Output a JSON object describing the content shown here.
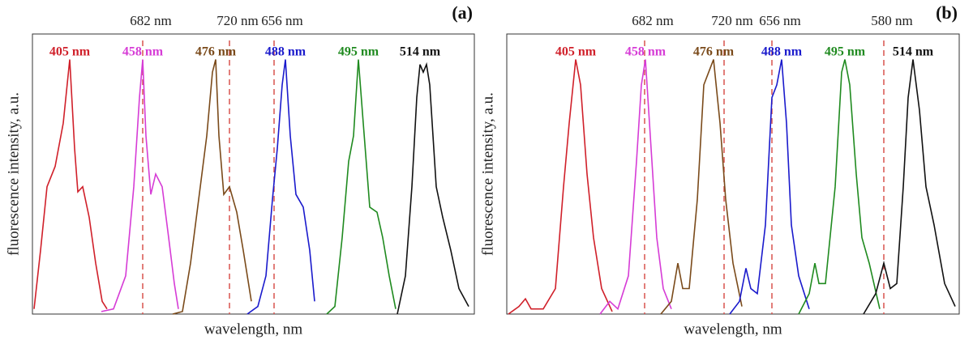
{
  "chart_data": [
    {
      "type": "line",
      "title": "(a)",
      "xlabel": "wavelength, nm",
      "ylabel": "fluorescence intensity, a.u.",
      "xlim": [
        0,
        545
      ],
      "ylim": [
        0,
        1.1
      ],
      "reference_lines": [
        {
          "label": "682 nm",
          "x": 136,
          "color": "#d9534f"
        },
        {
          "label": "720 nm",
          "x": 243,
          "color": "#d9534f"
        },
        {
          "label": "656 nm",
          "x": 298,
          "color": "#d9534f"
        }
      ],
      "series": [
        {
          "name": "405 nm",
          "color": "#d0202a",
          "x": [
            2,
            10,
            18,
            28,
            38,
            46,
            52,
            56,
            62,
            70,
            78,
            86,
            92
          ],
          "values": [
            0.02,
            0.25,
            0.5,
            0.58,
            0.75,
            1.0,
            0.65,
            0.48,
            0.5,
            0.38,
            0.2,
            0.05,
            0.02
          ]
        },
        {
          "name": "458 nm",
          "color": "#d63cd6",
          "x": [
            85,
            100,
            115,
            125,
            132,
            136,
            140,
            146,
            152,
            160,
            168,
            175,
            180
          ],
          "values": [
            0.01,
            0.02,
            0.15,
            0.5,
            0.85,
            1.0,
            0.7,
            0.47,
            0.55,
            0.5,
            0.3,
            0.12,
            0.02
          ]
        },
        {
          "name": "476 nm",
          "color": "#7a4a1a",
          "x": [
            173,
            185,
            195,
            205,
            215,
            222,
            226,
            230,
            236,
            243,
            252,
            260,
            270
          ],
          "values": [
            0,
            0.01,
            0.2,
            0.45,
            0.7,
            0.95,
            1.0,
            0.7,
            0.47,
            0.5,
            0.4,
            0.25,
            0.05
          ]
        },
        {
          "name": "488 nm",
          "color": "#1a1acc",
          "x": [
            265,
            278,
            288,
            296,
            302,
            308,
            312,
            318,
            325,
            334,
            342,
            348
          ],
          "values": [
            0,
            0.03,
            0.15,
            0.45,
            0.65,
            0.9,
            1.0,
            0.7,
            0.47,
            0.42,
            0.25,
            0.05
          ]
        },
        {
          "name": "495 nm",
          "color": "#1f8a1f",
          "x": [
            363,
            373,
            382,
            390,
            396,
            402,
            408,
            416,
            425,
            432,
            440,
            448
          ],
          "values": [
            0,
            0.03,
            0.3,
            0.6,
            0.7,
            1.0,
            0.75,
            0.42,
            0.4,
            0.3,
            0.15,
            0.02
          ]
        },
        {
          "name": "514 nm",
          "color": "#111111",
          "x": [
            450,
            460,
            468,
            474,
            478,
            482,
            486,
            490,
            498,
            506,
            516,
            526,
            538
          ],
          "values": [
            0,
            0.15,
            0.5,
            0.85,
            0.98,
            0.95,
            0.98,
            0.9,
            0.5,
            0.38,
            0.25,
            0.1,
            0.03
          ]
        }
      ]
    },
    {
      "type": "line",
      "title": "(b)",
      "xlabel": "wavelength, nm",
      "ylabel": "fluorescence intensity, a.u.",
      "xlim": [
        0,
        558
      ],
      "ylim": [
        0,
        1.1
      ],
      "reference_lines": [
        {
          "label": "682 nm",
          "x": 170,
          "color": "#d9534f"
        },
        {
          "label": "720 nm",
          "x": 268,
          "color": "#d9534f"
        },
        {
          "label": "656 nm",
          "x": 327,
          "color": "#d9534f"
        },
        {
          "label": "580 nm",
          "x": 465,
          "color": "#d9534f"
        }
      ],
      "series": [
        {
          "name": "405 nm",
          "color": "#d0202a",
          "x": [
            2,
            15,
            23,
            30,
            45,
            60,
            70,
            77,
            85,
            91,
            99,
            107,
            117,
            130
          ],
          "values": [
            0,
            0.03,
            0.06,
            0.02,
            0.02,
            0.1,
            0.5,
            0.75,
            1.0,
            0.9,
            0.55,
            0.3,
            0.1,
            0.01
          ]
        },
        {
          "name": "458 nm",
          "color": "#d63cd6",
          "x": [
            115,
            127,
            137,
            150,
            160,
            166,
            171,
            177,
            185,
            193,
            203
          ],
          "values": [
            0,
            0.05,
            0.02,
            0.15,
            0.6,
            0.9,
            1.0,
            0.7,
            0.3,
            0.1,
            0.02
          ]
        },
        {
          "name": "476 nm",
          "color": "#7a4a1a",
          "x": [
            190,
            203,
            211,
            217,
            225,
            235,
            243,
            249,
            255,
            263,
            270,
            279,
            290
          ],
          "values": [
            0,
            0.05,
            0.2,
            0.1,
            0.1,
            0.45,
            0.9,
            0.95,
            1.0,
            0.75,
            0.45,
            0.2,
            0.03
          ]
        },
        {
          "name": "488 nm",
          "color": "#1a1acc",
          "x": [
            275,
            287,
            295,
            301,
            309,
            319,
            327,
            333,
            339,
            345,
            351,
            360,
            373
          ],
          "values": [
            0,
            0.05,
            0.18,
            0.1,
            0.08,
            0.35,
            0.85,
            0.9,
            1.0,
            0.75,
            0.35,
            0.15,
            0.02
          ]
        },
        {
          "name": "495 nm",
          "color": "#1f8a1f",
          "x": [
            360,
            373,
            380,
            385,
            393,
            405,
            413,
            417,
            423,
            431,
            438,
            447,
            460
          ],
          "values": [
            0,
            0.08,
            0.2,
            0.12,
            0.12,
            0.5,
            0.95,
            1.0,
            0.9,
            0.55,
            0.3,
            0.2,
            0.02
          ]
        },
        {
          "name": "514 nm",
          "color": "#111111",
          "x": [
            440,
            455,
            465,
            473,
            481,
            489,
            495,
            501,
            509,
            517,
            527,
            540,
            553
          ],
          "values": [
            0,
            0.08,
            0.2,
            0.1,
            0.12,
            0.5,
            0.85,
            1.0,
            0.8,
            0.5,
            0.35,
            0.12,
            0.03
          ]
        }
      ]
    }
  ]
}
